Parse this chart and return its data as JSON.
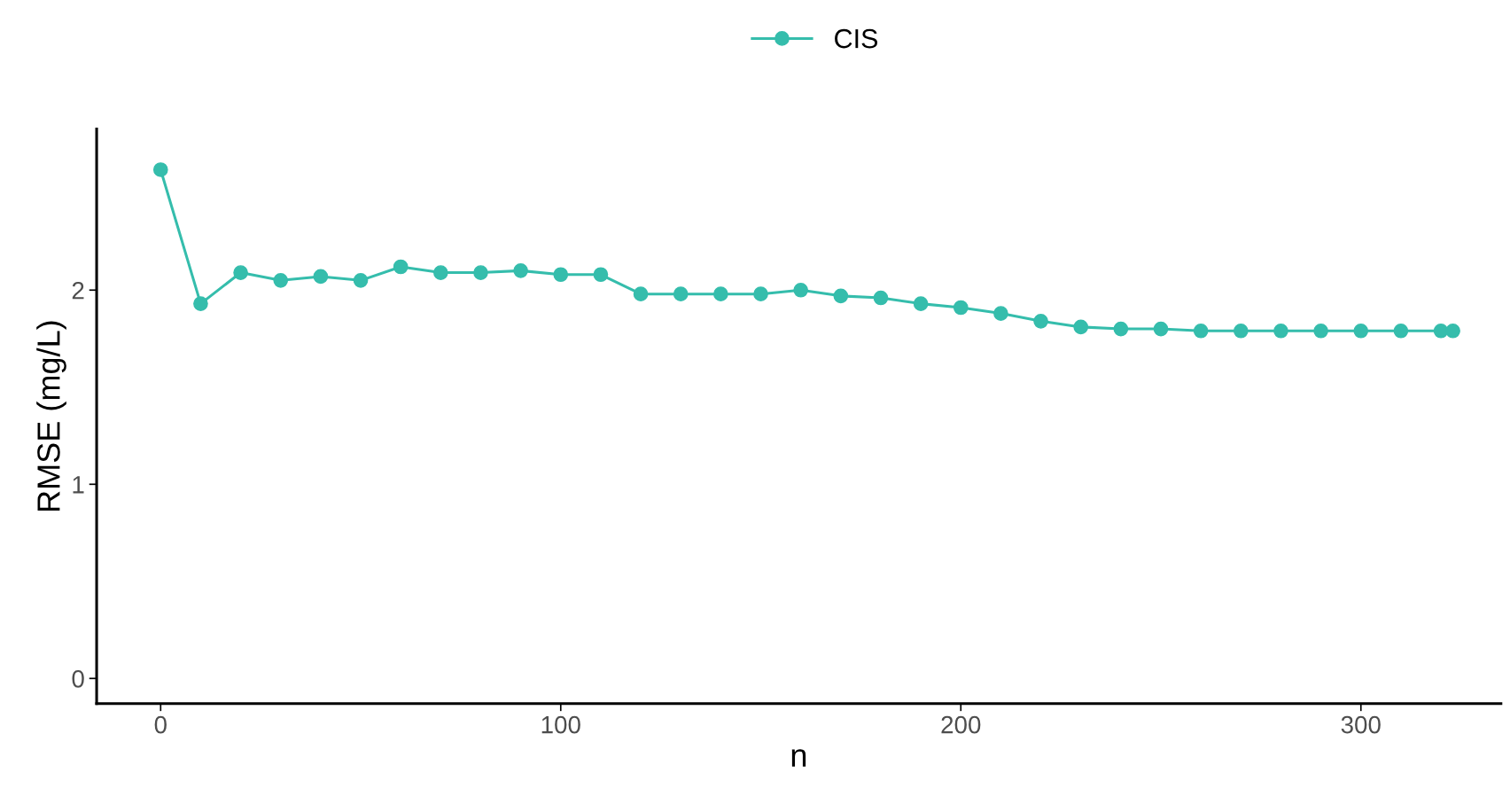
{
  "chart_data": {
    "type": "line",
    "xlabel": "n",
    "ylabel": "RMSE (mg/L)",
    "legend": "top",
    "marker": "circle",
    "line_style": "solid",
    "grid": false,
    "xlim": [
      -16,
      335
    ],
    "ylim": [
      -0.13,
      2.83
    ],
    "xticks": [
      0,
      100,
      200,
      300
    ],
    "yticks": [
      0,
      1,
      2
    ],
    "series": [
      {
        "name": "CIS",
        "color": "#35bdac",
        "x": [
          0,
          10,
          20,
          30,
          40,
          50,
          60,
          70,
          80,
          90,
          100,
          110,
          120,
          130,
          140,
          150,
          160,
          170,
          180,
          190,
          200,
          210,
          220,
          230,
          240,
          250,
          260,
          270,
          280,
          290,
          300,
          310,
          320,
          323
        ],
        "values": [
          2.62,
          1.93,
          2.09,
          2.05,
          2.07,
          2.05,
          2.12,
          2.09,
          2.09,
          2.1,
          2.08,
          2.08,
          1.98,
          1.98,
          1.98,
          1.98,
          2.0,
          1.97,
          1.96,
          1.93,
          1.91,
          1.88,
          1.84,
          1.81,
          1.8,
          1.8,
          1.79,
          1.79,
          1.79,
          1.79,
          1.79,
          1.79,
          1.79,
          1.79
        ]
      }
    ]
  }
}
